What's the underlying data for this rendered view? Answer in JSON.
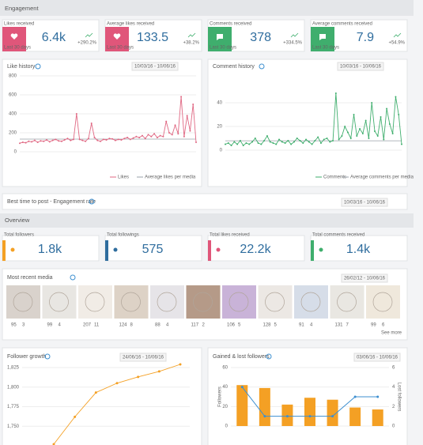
{
  "sections": {
    "engagement": "Engagement",
    "overview": "Overview"
  },
  "engagement_cards": [
    {
      "label": "Likes received",
      "value": "6.4k",
      "period": "Last 30 days",
      "change": "+290.2%",
      "color": "#e0567a"
    },
    {
      "label": "Average likes received",
      "value": "133.5",
      "period": "Last 30 days",
      "change": "+38.2%",
      "color": "#e0567a"
    },
    {
      "label": "Comments received",
      "value": "378",
      "period": "Last 30 days",
      "change": "+334.5%",
      "color": "#3fae6d"
    },
    {
      "label": "Average comments received",
      "value": "7.9",
      "period": "Last 30 days",
      "change": "+54.9%",
      "color": "#3fae6d"
    }
  ],
  "like_history": {
    "type": "line",
    "title": "Like history",
    "date_range": "10/03/16 - 10/06/16",
    "series": [
      {
        "name": "Likes",
        "color": "#e06883",
        "values": [
          90,
          100,
          95,
          110,
          105,
          120,
          100,
          115,
          110,
          125,
          105,
          120,
          130,
          115,
          110,
          125,
          140,
          120,
          130,
          400,
          130,
          120,
          110,
          140,
          300,
          150,
          120,
          110,
          130,
          125,
          140,
          135,
          120,
          130,
          125,
          140,
          150,
          130,
          145,
          160,
          150,
          170,
          140,
          180,
          160,
          190,
          150,
          170,
          160,
          320,
          200,
          180,
          280,
          190,
          580,
          160,
          380,
          220,
          500,
          100
        ]
      }
    ],
    "average": {
      "name": "Average likes per media",
      "value": 133.5,
      "color": "#9aa0a8"
    },
    "ylim": [
      0,
      800
    ],
    "yticks": [
      0,
      200,
      400,
      600,
      800
    ]
  },
  "comment_history": {
    "type": "line",
    "title": "Comment history",
    "date_range": "10/03/16 - 10/06/16",
    "series": [
      {
        "name": "Comments",
        "color": "#3fae6d",
        "values": [
          5,
          6,
          4,
          7,
          5,
          8,
          4,
          6,
          5,
          7,
          10,
          6,
          5,
          8,
          12,
          7,
          6,
          5,
          9,
          7,
          6,
          8,
          5,
          7,
          10,
          8,
          6,
          9,
          7,
          5,
          8,
          11,
          6,
          9,
          10,
          7,
          8,
          48,
          9,
          12,
          20,
          15,
          10,
          30,
          12,
          18,
          14,
          25,
          10,
          40,
          16,
          12,
          28,
          9,
          35,
          22,
          14,
          45,
          30,
          5
        ]
      }
    ],
    "average": {
      "name": "Average comments per media",
      "value": 7.9,
      "color": "#9aa0a8"
    },
    "ylim": [
      0,
      50
    ],
    "yticks": [
      0,
      20,
      40
    ]
  },
  "best_time": {
    "title": "Best time to post - Engagement rate",
    "date_range": "10/03/16 - 10/06/16"
  },
  "overview_cards": [
    {
      "label": "Total followers",
      "value": "1.8k",
      "color": "#f4a024"
    },
    {
      "label": "Total followings",
      "value": "575",
      "color": "#2f6d9e"
    },
    {
      "label": "Total likes received",
      "value": "22.2k",
      "color": "#e0567a"
    },
    {
      "label": "Total comments received",
      "value": "1.4k",
      "color": "#3fae6d"
    }
  ],
  "recent_media": {
    "title": "Most recent media",
    "date_range": "26/02/12 - 10/06/16",
    "see_more": "See more",
    "items": [
      {
        "likes": 95,
        "comments": 3
      },
      {
        "likes": 99,
        "comments": 4
      },
      {
        "likes": 207,
        "comments": 11
      },
      {
        "likes": 124,
        "comments": 8
      },
      {
        "likes": 88,
        "comments": 4
      },
      {
        "likes": 117,
        "comments": 2
      },
      {
        "likes": 106,
        "comments": 5
      },
      {
        "likes": 128,
        "comments": 5
      },
      {
        "likes": 91,
        "comments": 4
      },
      {
        "likes": 131,
        "comments": 7
      },
      {
        "likes": 99,
        "comments": 6
      }
    ]
  },
  "follower_growth": {
    "type": "line",
    "title": "Follower growth",
    "date_range": "24/06/16 - 10/06/16",
    "series": [
      {
        "name": "Followers",
        "color": "#f4a024",
        "values": [
          1727,
          1762,
          1793,
          1805,
          1813,
          1820,
          1829
        ]
      }
    ],
    "ylim": [
      1725,
      1830
    ],
    "yticks": [
      {
        "value": 1750,
        "label": "1,750"
      },
      {
        "value": 1775,
        "label": "1,775"
      },
      {
        "value": 1800,
        "label": "1,800"
      },
      {
        "value": 1825,
        "label": "1,825"
      }
    ]
  },
  "gained_lost": {
    "type": "bar",
    "title": "Gained & lost followers",
    "date_range": "03/06/16 - 10/06/16",
    "series": [
      {
        "name": "Followers",
        "color": "#f4a024",
        "values": [
          42,
          39,
          22,
          29,
          27,
          19,
          17
        ]
      },
      {
        "name": "Lost followers",
        "color": "#3d8fd0",
        "axis": "y2",
        "values": [
          4,
          1,
          1,
          1,
          1,
          3,
          3
        ]
      }
    ],
    "ylim": [
      0,
      60
    ],
    "yticks": [
      0,
      20,
      40,
      60
    ],
    "y2lim": [
      0,
      6
    ],
    "y2ticks": [
      0,
      2,
      4,
      6
    ]
  }
}
